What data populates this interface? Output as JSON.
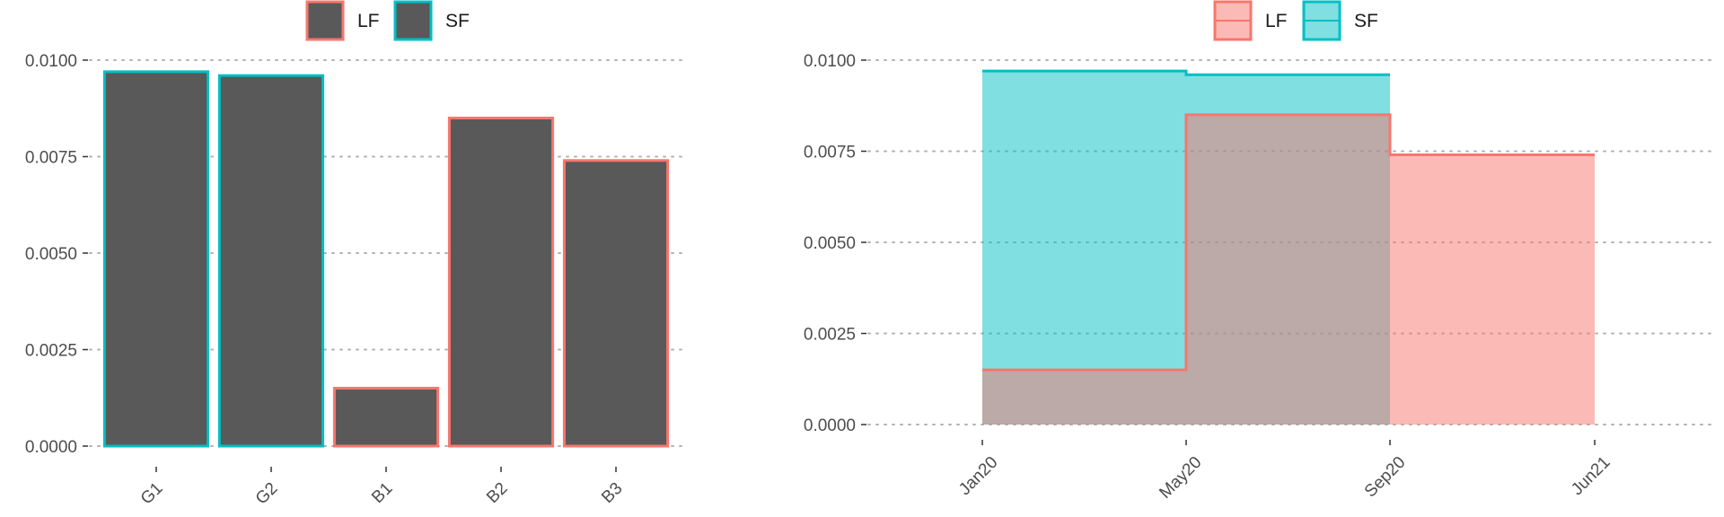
{
  "colors": {
    "lf": "#F8766D",
    "sf": "#00BFC4",
    "bar_fill": "#595959",
    "grid": "#b3b3b3",
    "text": "#4d4d4d"
  },
  "chart_data": [
    {
      "type": "bar",
      "title": "",
      "xlabel": "",
      "ylabel": "",
      "categories": [
        "G1",
        "G2",
        "B1",
        "B2",
        "B3"
      ],
      "values": [
        0.0097,
        0.0096,
        0.0015,
        0.0085,
        0.0074
      ],
      "group": [
        "SF",
        "SF",
        "LF",
        "LF",
        "LF"
      ],
      "ylim": [
        0,
        0.01
      ],
      "yticks": [
        0.0,
        0.0025,
        0.005,
        0.0075,
        0.01
      ],
      "ytick_labels": [
        "0.0000",
        "0.0025",
        "0.0050",
        "0.0075",
        "0.0100"
      ],
      "legend": [
        "LF",
        "SF"
      ],
      "legend_position": "top",
      "grid": "horizontal dotted"
    },
    {
      "type": "area",
      "title": "",
      "xlabel": "",
      "ylabel": "",
      "x_ticks": [
        "2020-01",
        "2020-05",
        "2020-09",
        "2021-06"
      ],
      "x_tick_labels": [
        "Jan20",
        "May20",
        "Sep20",
        "Jun21"
      ],
      "x_range": [
        "2019-10",
        "2021-09"
      ],
      "ylim": [
        0,
        0.01
      ],
      "yticks": [
        0.0,
        0.0025,
        0.005,
        0.0075,
        0.01
      ],
      "ytick_labels": [
        "0.0000",
        "0.0025",
        "0.0050",
        "0.0075",
        "0.0100"
      ],
      "series": [
        {
          "name": "LF",
          "steps": [
            {
              "from": "2020-01",
              "to": "2020-05",
              "value": 0.0015
            },
            {
              "from": "2020-05",
              "to": "2020-09",
              "value": 0.0085
            },
            {
              "from": "2020-09",
              "to": "2021-06",
              "value": 0.0074
            }
          ]
        },
        {
          "name": "SF",
          "steps": [
            {
              "from": "2020-01",
              "to": "2020-05",
              "value": 0.0097
            },
            {
              "from": "2020-05",
              "to": "2020-09",
              "value": 0.0096
            }
          ]
        }
      ],
      "legend": [
        "LF",
        "SF"
      ],
      "legend_position": "top",
      "grid": "horizontal dotted"
    }
  ]
}
